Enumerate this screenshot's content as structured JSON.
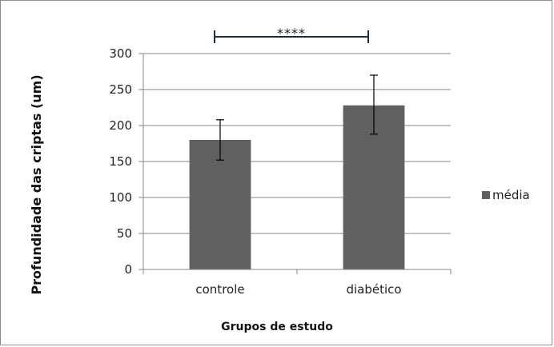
{
  "chart_data": {
    "type": "bar",
    "categories": [
      "controle",
      "diabético"
    ],
    "series": [
      {
        "name": "média",
        "values": [
          180,
          228
        ],
        "error_low": [
          152,
          188
        ],
        "error_high": [
          208,
          270
        ],
        "color": "#606060"
      }
    ],
    "xlabel": "Grupos de estudo",
    "ylabel": "Profundidade das criptas (um)",
    "ylim": [
      0,
      300
    ],
    "yticks": [
      0,
      50,
      100,
      150,
      200,
      250,
      300
    ],
    "grid": true,
    "legend": "right",
    "significance": {
      "label": "****",
      "between": [
        "controle",
        "diabético"
      ]
    }
  }
}
